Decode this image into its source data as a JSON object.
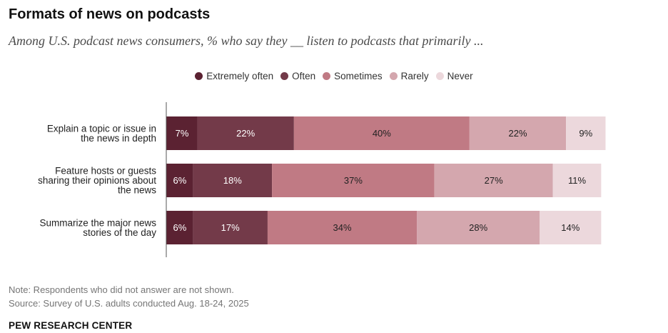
{
  "header": {
    "title": "Formats of news on podcasts",
    "subtitle": "Among U.S. podcast news consumers, % who say they __ listen to podcasts that primarily ..."
  },
  "footer": {
    "note": "Note: Respondents who did not answer are not shown.",
    "source": "Source: Survey of U.S. adults conducted Aug. 18-24, 2025",
    "brand": "PEW RESEARCH CENTER"
  },
  "chart_data": {
    "type": "bar",
    "orientation": "horizontal",
    "stacked": true,
    "legend_position": "top-center",
    "grid": false,
    "xlim": [
      0,
      100
    ],
    "categories": [
      "Explain a topic or issue in the news in depth",
      "Feature hosts or guests sharing their opinions about the news",
      "Summarize the major news stories of the day"
    ],
    "category_lines": [
      [
        "Explain a topic or issue in",
        "the news in depth"
      ],
      [
        "Feature hosts or guests",
        "sharing their opinions about",
        "the news"
      ],
      [
        "Summarize the major news",
        "stories of the day"
      ]
    ],
    "series": [
      {
        "name": "Extremely often",
        "color": "#5b2232",
        "label_color": "#ffffff",
        "values": [
          7,
          6,
          6
        ]
      },
      {
        "name": "Often",
        "color": "#733a49",
        "label_color": "#ffffff",
        "values": [
          22,
          18,
          17
        ]
      },
      {
        "name": "Sometimes",
        "color": "#c07a84",
        "label_color": "#222222",
        "values": [
          40,
          37,
          34
        ]
      },
      {
        "name": "Rarely",
        "color": "#d4a7ae",
        "label_color": "#222222",
        "values": [
          22,
          27,
          28
        ]
      },
      {
        "name": "Never",
        "color": "#ecd8dc",
        "label_color": "#222222",
        "values": [
          9,
          11,
          14
        ]
      }
    ]
  }
}
